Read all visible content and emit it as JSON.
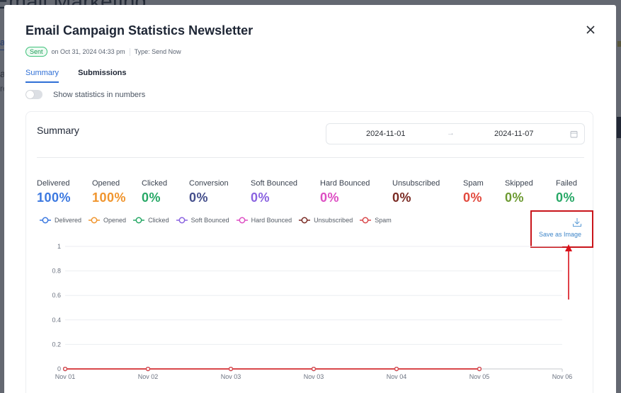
{
  "background": {
    "page_title": "Email Marketing"
  },
  "modal": {
    "title": "Email Campaign Statistics Newsletter",
    "status_badge": "Sent",
    "sent_on": "on Oct 31, 2024 04:33 pm",
    "type": "Type: Send Now",
    "close_icon": "close-icon",
    "tabs": [
      {
        "label": "Summary",
        "active": true
      },
      {
        "label": "Submissions",
        "active": false
      }
    ],
    "toggle": {
      "label": "Show statistics in numbers",
      "on": false
    }
  },
  "summary": {
    "title": "Summary",
    "date_range": {
      "start": "2024-11-01",
      "separator_icon": "arrow-right-icon",
      "end": "2024-11-07",
      "calendar_icon": "calendar-icon"
    },
    "stats": [
      {
        "label": "Delivered",
        "value": "100%",
        "color": "#3b78e0"
      },
      {
        "label": "Opened",
        "value": "100%",
        "color": "#f0952e"
      },
      {
        "label": "Clicked",
        "value": "0%",
        "color": "#27a866"
      },
      {
        "label": "Conversion",
        "value": "0%",
        "color": "#454f8c"
      },
      {
        "label": "Soft Bounced",
        "value": "0%",
        "color": "#8a63e0"
      },
      {
        "label": "Hard Bounced",
        "value": "0%",
        "color": "#dd4ec3"
      },
      {
        "label": "Unsubscribed",
        "value": "0%",
        "color": "#7a2b24"
      },
      {
        "label": "Spam",
        "value": "0%",
        "color": "#e2493d"
      },
      {
        "label": "Skipped",
        "value": "0%",
        "color": "#6d9a32"
      },
      {
        "label": "Failed",
        "value": "0%",
        "color": "#27a866"
      }
    ],
    "save_as_image": {
      "label": "Save as Image",
      "icon": "download-icon"
    }
  },
  "chart_data": {
    "type": "line",
    "title": "",
    "xlabel": "",
    "ylabel": "",
    "categories": [
      "Nov 01",
      "Nov 02",
      "Nov 03",
      "Nov 03",
      "Nov 04",
      "Nov 05"
    ],
    "x_axis_ticks": [
      "Nov 01",
      "Nov 02",
      "Nov 03",
      "Nov 03",
      "Nov 04",
      "Nov 05",
      "Nov 06"
    ],
    "y_ticks": [
      0,
      0.2,
      0.4,
      0.6,
      0.8,
      1
    ],
    "ylim": [
      0,
      1
    ],
    "grid": true,
    "legend_position": "top-left",
    "series": [
      {
        "name": "Delivered",
        "color": "#3b78e0",
        "values": [
          0,
          0,
          0,
          0,
          0,
          0
        ]
      },
      {
        "name": "Opened",
        "color": "#f0952e",
        "values": [
          0,
          0,
          0,
          0,
          0,
          0
        ]
      },
      {
        "name": "Clicked",
        "color": "#27a866",
        "values": [
          0,
          0,
          0,
          0,
          0,
          0
        ]
      },
      {
        "name": "Soft Bounced",
        "color": "#8a63e0",
        "values": [
          0,
          0,
          0,
          0,
          0,
          0
        ]
      },
      {
        "name": "Hard Bounced",
        "color": "#dd4ec3",
        "values": [
          0,
          0,
          0,
          0,
          0,
          0
        ]
      },
      {
        "name": "Unsubscribed",
        "color": "#7a2b24",
        "values": [
          0,
          0,
          0,
          0,
          0,
          0
        ]
      },
      {
        "name": "Spam",
        "color": "#d9474a",
        "values": [
          0,
          0,
          0,
          0,
          0,
          0
        ]
      }
    ]
  }
}
